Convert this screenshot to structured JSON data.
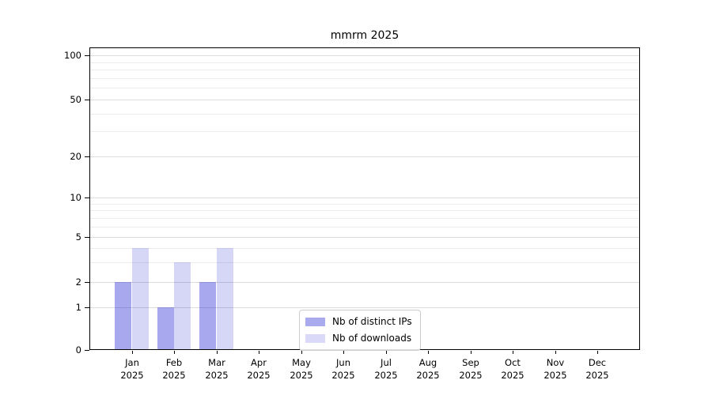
{
  "title": "mmrm 2025",
  "chart_data": {
    "type": "bar",
    "title": "mmrm 2025",
    "categories": [
      "Jan",
      "Feb",
      "Mar",
      "Apr",
      "May",
      "Jun",
      "Jul",
      "Aug",
      "Sep",
      "Oct",
      "Nov",
      "Dec"
    ],
    "year_label": "2025",
    "series": [
      {
        "name": "Nb of distinct IPs",
        "color": "rgba(0,0,205,0.34)",
        "legend_color": "#aaaaee",
        "values": [
          2,
          1,
          2,
          0,
          0,
          0,
          0,
          0,
          0,
          0,
          0,
          0
        ]
      },
      {
        "name": "Nb of downloads",
        "color": "rgba(0,0,205,0.16)",
        "legend_color": "#dadaf8",
        "values": [
          4,
          3,
          4,
          0,
          0,
          0,
          0,
          0,
          0,
          0,
          0,
          0
        ]
      }
    ],
    "yscale": "symlog",
    "yticks": [
      0,
      1,
      2,
      5,
      10,
      20,
      50,
      100
    ],
    "minor_yticks": [
      3,
      4,
      6,
      7,
      8,
      9,
      30,
      40,
      60,
      70,
      80,
      90
    ],
    "ylim": [
      0,
      100
    ],
    "grid": true,
    "legend_position": "bottom-center"
  },
  "colors": {
    "background": "#ffffff",
    "axis": "#000000",
    "grid_major": "#dcdcdc",
    "grid_minor": "#ececec",
    "bar_ips": "rgba(0,0,205,0.34)",
    "bar_downloads": "rgba(0,0,205,0.16)"
  }
}
